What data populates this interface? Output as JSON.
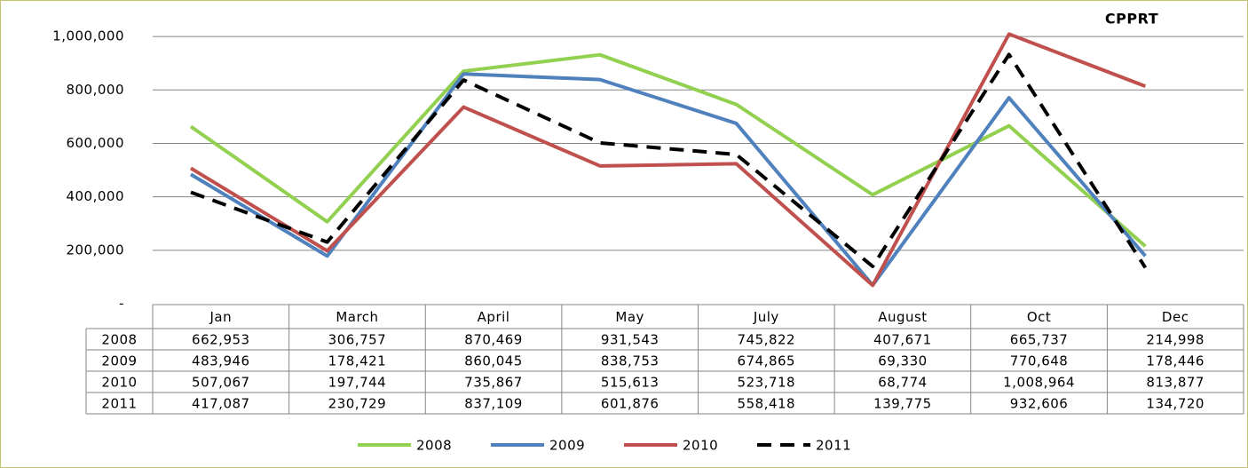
{
  "chart_data": {
    "type": "line",
    "title": "CPPRT",
    "categories": [
      "Jan",
      "March",
      "April",
      "May",
      "July",
      "August",
      "Oct",
      "Dec"
    ],
    "series": [
      {
        "name": "2008",
        "color": "#92d050",
        "dashed": false,
        "values": [
          662953,
          306757,
          870469,
          931543,
          745822,
          407671,
          665737,
          214998
        ],
        "value_labels": [
          "662,953",
          "306,757",
          "870,469",
          "931,543",
          "745,822",
          "407,671",
          "665,737",
          "214,998"
        ]
      },
      {
        "name": "2009",
        "color": "#4f81bd",
        "dashed": false,
        "values": [
          483946,
          178421,
          860045,
          838753,
          674865,
          69330,
          770648,
          178446
        ],
        "value_labels": [
          "483,946",
          "178,421",
          "860,045",
          "838,753",
          "674,865",
          "69,330",
          "770,648",
          "178,446"
        ]
      },
      {
        "name": "2010",
        "color": "#c0504d",
        "dashed": false,
        "values": [
          507067,
          197744,
          735867,
          515613,
          523718,
          68774,
          1008964,
          813877
        ],
        "value_labels": [
          "507,067",
          "197,744",
          "735,867",
          "515,613",
          "523,718",
          "68,774",
          "1,008,964",
          "813,877"
        ]
      },
      {
        "name": "2011",
        "color": "#000000",
        "dashed": true,
        "values": [
          417087,
          230729,
          837109,
          601876,
          558418,
          139775,
          932606,
          134720
        ],
        "value_labels": [
          "417,087",
          "230,729",
          "837,109",
          "601,876",
          "558,418",
          "139,775",
          "932,606",
          "134,720"
        ]
      }
    ],
    "ylim": [
      0,
      1100000
    ],
    "yticks": [
      {
        "value": 0,
        "label": "-"
      },
      {
        "value": 200000,
        "label": "200,000"
      },
      {
        "value": 400000,
        "label": "400,000"
      },
      {
        "value": 600000,
        "label": "600,000"
      },
      {
        "value": 800000,
        "label": "800,000"
      },
      {
        "value": 1000000,
        "label": "1,000,000"
      }
    ],
    "grid": true
  }
}
